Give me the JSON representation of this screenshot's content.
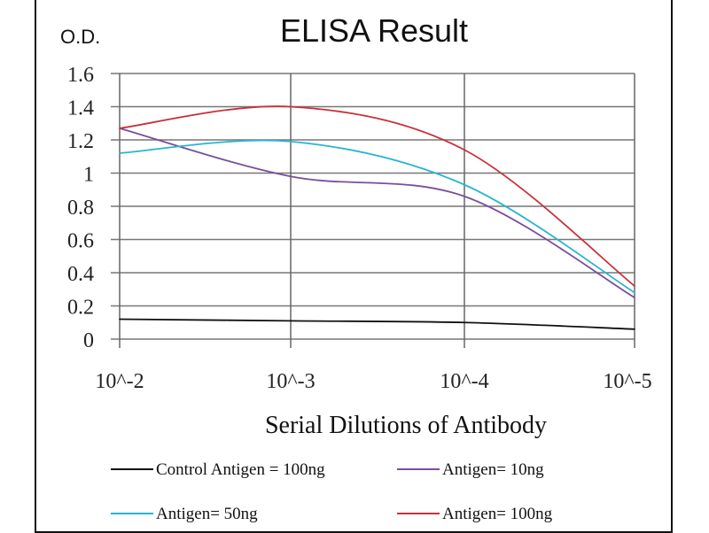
{
  "chart_data": {
    "type": "line",
    "title": "ELISA Result",
    "ylabel": "O.D.",
    "xlabel": "Serial Dilutions  of Antibody",
    "categories": [
      "10^-2",
      "10^-3",
      "10^-4",
      "10^-5"
    ],
    "ylim": [
      0,
      1.6
    ],
    "yticks": [
      "0",
      "0.2",
      "0.4",
      "0.6",
      "0.8",
      "1",
      "1.2",
      "1.4",
      "1.6"
    ],
    "grid": true,
    "legend_position": "bottom",
    "series": [
      {
        "name": "Control Antigen = 100ng",
        "color": "#111111",
        "values": [
          0.12,
          0.11,
          0.1,
          0.06
        ]
      },
      {
        "name": "Antigen= 10ng",
        "color": "#7a4e9c",
        "values": [
          1.27,
          0.98,
          0.86,
          0.25
        ]
      },
      {
        "name": "Antigen= 50ng",
        "color": "#2ab5cf",
        "values": [
          1.12,
          1.19,
          0.93,
          0.28
        ]
      },
      {
        "name": "Antigen= 100ng",
        "color": "#c8323a",
        "values": [
          1.27,
          1.4,
          1.14,
          0.32
        ]
      }
    ]
  }
}
